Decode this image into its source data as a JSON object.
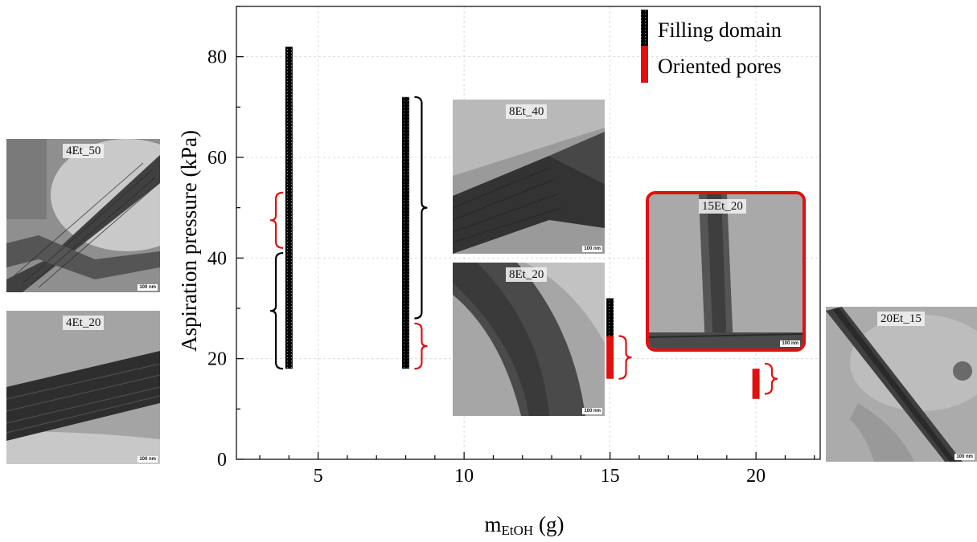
{
  "chart_data": {
    "type": "range-bar",
    "xlabel_main": "m",
    "xlabel_sub": "EtOH",
    "xlabel_unit": " (g)",
    "ylabel": "Aspiration pressure (kPa)",
    "xlim": [
      2.2,
      22.2
    ],
    "ylim": [
      0,
      90
    ],
    "xticks": [
      5,
      10,
      15,
      20
    ],
    "yticks": [
      0,
      20,
      40,
      60,
      80
    ],
    "grid": true,
    "legend_position": "top-right",
    "legend": [
      {
        "label": "Filling domain",
        "style": "filling",
        "color": "#000000"
      },
      {
        "label": "Oriented pores",
        "style": "oriented",
        "color": "#e01010"
      }
    ],
    "series": [
      {
        "name": "Filling domain",
        "ranges": [
          {
            "x": 4,
            "y_min": 18,
            "y_max": 82
          },
          {
            "x": 8,
            "y_min": 18,
            "y_max": 72
          },
          {
            "x": 15,
            "y_min": 24,
            "y_max": 32
          }
        ]
      },
      {
        "name": "Oriented pores",
        "ranges": [
          {
            "x": 15,
            "y_min": 16,
            "y_max": 24.5
          },
          {
            "x": 20,
            "y_min": 12,
            "y_max": 18
          }
        ]
      }
    ],
    "braces": [
      {
        "x": 3.8,
        "y_min": 42,
        "y_max": 53,
        "color": "#e01010",
        "side": "left"
      },
      {
        "x": 3.8,
        "y_min": 18,
        "y_max": 41,
        "color": "#000000",
        "side": "left"
      },
      {
        "x": 8.3,
        "y_min": 28,
        "y_max": 72,
        "color": "#000000",
        "side": "right"
      },
      {
        "x": 8.3,
        "y_min": 18,
        "y_max": 27,
        "color": "#e01010",
        "side": "right"
      },
      {
        "x": 15.3,
        "y_min": 16,
        "y_max": 24.5,
        "color": "#e01010",
        "side": "right"
      },
      {
        "x": 20.3,
        "y_min": 13,
        "y_max": 19,
        "color": "#e01010",
        "side": "right"
      }
    ]
  },
  "images": [
    {
      "label": "4Et_50",
      "scale": "100 nm",
      "pattern": "porous-diagonal",
      "highlight": false
    },
    {
      "label": "4Et_20",
      "scale": "100 nm",
      "pattern": "porous-tube",
      "highlight": false
    },
    {
      "label": "8Et_40",
      "scale": "100 nm",
      "pattern": "dense-tube",
      "highlight": false
    },
    {
      "label": "8Et_20",
      "scale": "100 nm",
      "pattern": "smooth-tube",
      "highlight": false
    },
    {
      "label": "15Et_20",
      "scale": "100 nm",
      "pattern": "vertical-tube",
      "highlight": true,
      "highlight_color": "#e01010"
    },
    {
      "label": "20Et_15",
      "scale": "100 nm",
      "pattern": "diagonal-tube",
      "highlight": false
    }
  ]
}
